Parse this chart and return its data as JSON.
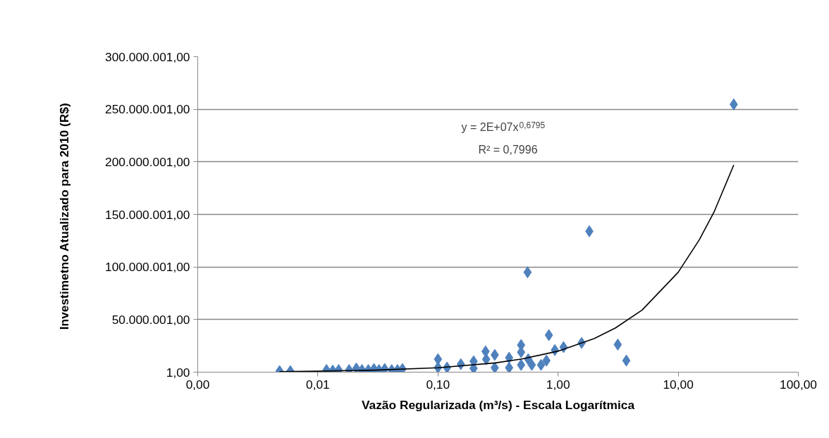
{
  "chart_data": {
    "type": "scatter",
    "xlabel": "Vazão Regularizada (m³/s) - Escala Logarítmica",
    "ylabel": "Investimetno Atualizado para 2010  (R$)",
    "log": "x",
    "grid": "y",
    "xlim": [
      0.001,
      100
    ],
    "xticks": [
      {
        "value": 0.001,
        "label": "0,00"
      },
      {
        "value": 0.01,
        "label": "0,01"
      },
      {
        "value": 0.1,
        "label": "0,10"
      },
      {
        "value": 1,
        "label": "1,00"
      },
      {
        "value": 10,
        "label": "10,00"
      },
      {
        "value": 100,
        "label": "100,00"
      }
    ],
    "ylim": [
      1,
      300000001
    ],
    "yticks": [
      {
        "value": 1,
        "label": "1,00"
      },
      {
        "value": 50000001,
        "label": "50.000.001,00"
      },
      {
        "value": 100000001,
        "label": "100.000.001,00"
      },
      {
        "value": 150000001,
        "label": "150.000.001,00"
      },
      {
        "value": 200000001,
        "label": "200.000.001,00"
      },
      {
        "value": 250000001,
        "label": "250.000.001,00"
      },
      {
        "value": 300000001,
        "label": "300.000.001,00"
      }
    ],
    "annotations": [
      "y = 2E+07x$^{0,6795}$",
      "R² = 0,7996"
    ],
    "series": [
      {
        "marker": "diamond",
        "color": "#4f81bd",
        "x": [
          0.0048,
          0.0059,
          0.0118,
          0.0133,
          0.0149,
          0.0182,
          0.0209,
          0.0233,
          0.0263,
          0.0293,
          0.0323,
          0.036,
          0.0412,
          0.046,
          0.0506,
          0.1,
          0.1,
          0.119,
          0.155,
          0.198,
          0.198,
          0.249,
          0.252,
          0.297,
          0.297,
          0.391,
          0.391,
          0.492,
          0.492,
          0.492,
          0.557,
          0.564,
          0.604,
          0.721,
          0.8,
          0.838,
          0.94,
          1.11,
          1.57,
          1.82,
          3.14,
          3.7,
          29
        ],
        "values": [
          1000000,
          1000000,
          2000000,
          1500000,
          2000000,
          2000000,
          3500000,
          2000000,
          2000000,
          3000000,
          2000000,
          3000000,
          2000000,
          2000000,
          3000000,
          12300000,
          4400000,
          4400000,
          7600000,
          10300000,
          3600000,
          19700000,
          12300000,
          16400000,
          4200000,
          13700000,
          4200000,
          25800000,
          19000000,
          6900000,
          95000000,
          12300000,
          6900000,
          6900000,
          11000000,
          35200000,
          21000000,
          23800000,
          27800000,
          134000000,
          26200000,
          11000000,
          254600000
        ]
      },
      {
        "type": "line",
        "marker": "none",
        "color": "#000000",
        "x": [
          0.0048,
          0.01,
          0.03,
          0.1,
          0.3,
          0.5,
          1,
          2,
          3,
          5,
          10,
          15,
          20,
          29
        ],
        "values": [
          500000,
          900000,
          1900000,
          4200000,
          8800000,
          12500000,
          20000000,
          32000000,
          42000000,
          59000000,
          95000000,
          126000000,
          153000000,
          197000000
        ]
      }
    ]
  }
}
